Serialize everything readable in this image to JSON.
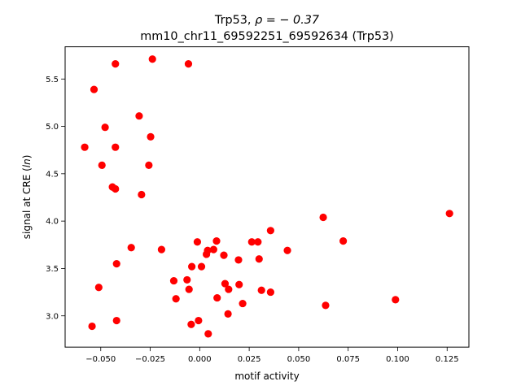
{
  "chart_data": {
    "type": "scatter",
    "title_line1_prefix": "Trp53, ",
    "title_line1_math": "ρ = − 0.37",
    "title_line2": "mm10_chr11_69592251_69592634 (Trp53)",
    "xlabel": "motif activity",
    "ylabel_prefix": "signal at CRE (",
    "ylabel_math": "ln",
    "ylabel_suffix": ")",
    "xlim": [
      -0.068,
      0.136
    ],
    "ylim": [
      2.67,
      5.84
    ],
    "xticks": [
      -0.05,
      -0.025,
      0.0,
      0.025,
      0.05,
      0.075,
      0.1,
      0.125
    ],
    "xtick_labels": [
      "−0.050",
      "−0.025",
      "0.000",
      "0.025",
      "0.050",
      "0.075",
      "0.100",
      "0.125"
    ],
    "yticks": [
      3.0,
      3.5,
      4.0,
      4.5,
      5.0,
      5.5
    ],
    "ytick_labels": [
      "3.0",
      "3.5",
      "4.0",
      "4.5",
      "5.0",
      "5.5"
    ],
    "grid": false,
    "marker_color": "#ff0000",
    "points": [
      [
        -0.0581,
        4.78
      ],
      [
        -0.0544,
        2.89
      ],
      [
        -0.0534,
        5.39
      ],
      [
        -0.051,
        3.3
      ],
      [
        -0.0494,
        4.59
      ],
      [
        -0.0478,
        4.99
      ],
      [
        -0.0441,
        4.36
      ],
      [
        -0.0426,
        4.78
      ],
      [
        -0.0426,
        5.66
      ],
      [
        -0.0426,
        4.34
      ],
      [
        -0.042,
        3.55
      ],
      [
        -0.042,
        2.95
      ],
      [
        -0.0346,
        3.72
      ],
      [
        -0.0306,
        5.11
      ],
      [
        -0.0294,
        4.28
      ],
      [
        -0.0257,
        4.59
      ],
      [
        -0.0248,
        4.89
      ],
      [
        -0.0239,
        5.71
      ],
      [
        -0.0193,
        3.7
      ],
      [
        -0.0131,
        3.37
      ],
      [
        -0.012,
        3.18
      ],
      [
        -0.0064,
        3.38
      ],
      [
        -0.0057,
        5.66
      ],
      [
        -0.0054,
        3.28
      ],
      [
        -0.0043,
        2.91
      ],
      [
        -0.004,
        3.52
      ],
      [
        -0.0012,
        3.78
      ],
      [
        -0.0006,
        2.95
      ],
      [
        0.0009,
        3.52
      ],
      [
        0.0034,
        3.65
      ],
      [
        0.004,
        3.69
      ],
      [
        0.0043,
        2.81
      ],
      [
        0.007,
        3.7
      ],
      [
        0.0085,
        3.79
      ],
      [
        0.0088,
        3.19
      ],
      [
        0.0122,
        3.64
      ],
      [
        0.0128,
        3.34
      ],
      [
        0.0143,
        3.02
      ],
      [
        0.0146,
        3.28
      ],
      [
        0.0196,
        3.59
      ],
      [
        0.0199,
        3.33
      ],
      [
        0.0217,
        3.13
      ],
      [
        0.0263,
        3.78
      ],
      [
        0.0294,
        3.78
      ],
      [
        0.03,
        3.6
      ],
      [
        0.0312,
        3.27
      ],
      [
        0.0358,
        3.9
      ],
      [
        0.0358,
        3.25
      ],
      [
        0.0443,
        3.69
      ],
      [
        0.0624,
        4.04
      ],
      [
        0.0636,
        3.11
      ],
      [
        0.0725,
        3.79
      ],
      [
        0.0989,
        3.17
      ],
      [
        0.1262,
        4.08
      ]
    ]
  }
}
